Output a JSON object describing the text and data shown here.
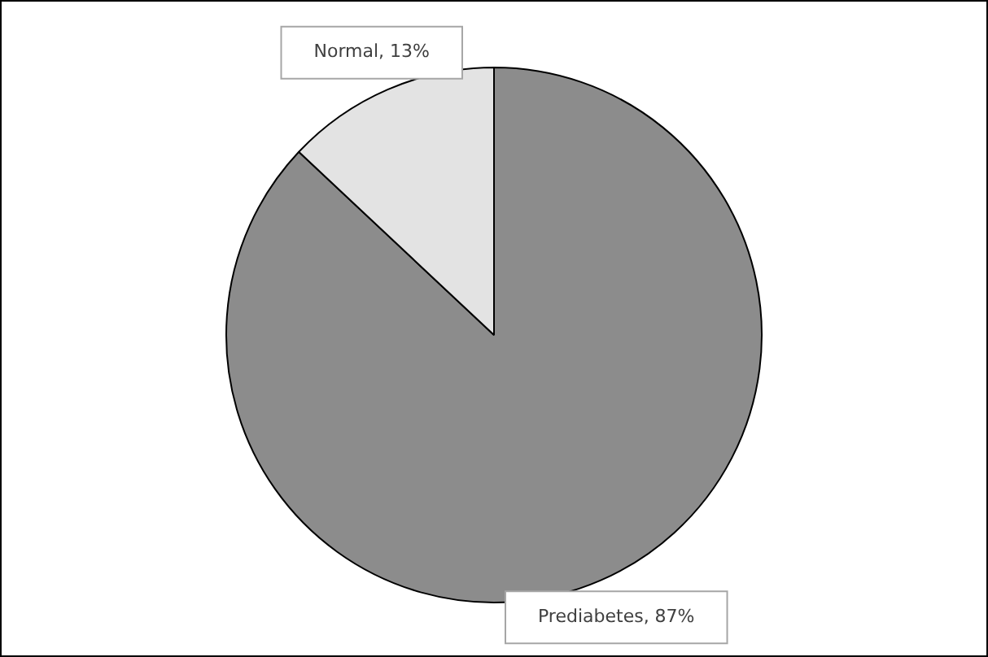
{
  "chart_data": {
    "type": "pie",
    "categories": [
      "Prediabetes",
      "Normal"
    ],
    "values": [
      87,
      13
    ],
    "colors": [
      "#8c8c8c",
      "#e3e3e3"
    ],
    "value_labels": [
      "87%",
      "13%"
    ],
    "legend": false
  }
}
